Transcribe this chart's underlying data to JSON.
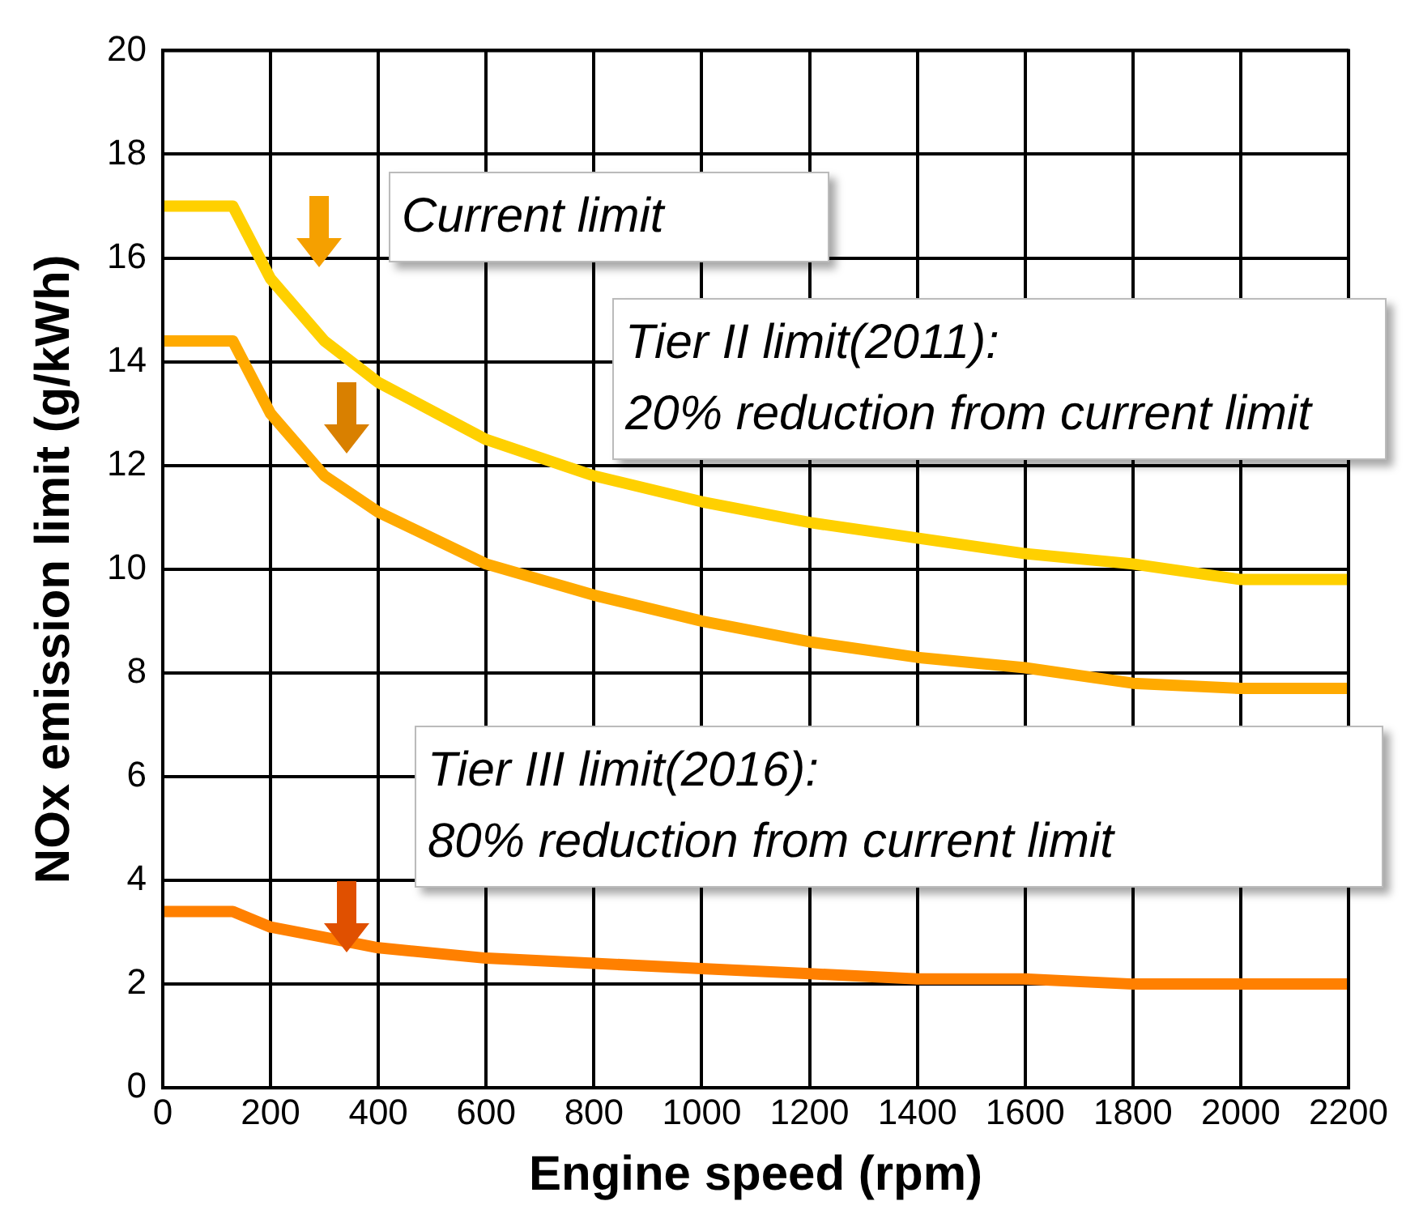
{
  "chart_data": {
    "type": "line",
    "xlabel": "Engine speed (rpm)",
    "ylabel": "NOx emission limit (g/kWh)",
    "x": [
      0,
      130,
      200,
      300,
      400,
      600,
      800,
      1000,
      1200,
      1400,
      1600,
      1800,
      2000,
      2200
    ],
    "series": [
      {
        "color": "#ffd000",
        "values": [
          17,
          17,
          15.6,
          14.4,
          13.6,
          12.5,
          11.8,
          11.3,
          10.9,
          10.6,
          10.3,
          10.1,
          9.8,
          9.8
        ]
      },
      {
        "color": "#ffaa00",
        "values": [
          14.4,
          14.4,
          13.0,
          11.8,
          11.1,
          10.1,
          9.5,
          9.0,
          8.6,
          8.3,
          8.1,
          7.8,
          7.7,
          7.7
        ]
      },
      {
        "color": "#ff8000",
        "values": [
          3.4,
          3.4,
          3.1,
          2.9,
          2.7,
          2.5,
          2.4,
          2.3,
          2.2,
          2.1,
          2.1,
          2.0,
          2.0,
          2.0
        ]
      }
    ],
    "xlim": [
      0,
      2200
    ],
    "ylim": [
      0,
      20
    ],
    "xticks": [
      0,
      200,
      400,
      600,
      800,
      1000,
      1200,
      1400,
      1600,
      1800,
      2000,
      2200
    ],
    "yticks": [
      0,
      2,
      4,
      6,
      8,
      10,
      12,
      14,
      16,
      18,
      20
    ],
    "grid": true,
    "marker": "none",
    "line_style": "solid",
    "annotations": [
      "Current limit",
      "Tier II limit(2011):\n20% reduction from current limit",
      "Tier III limit(2016):\n80% reduction from current limit"
    ]
  }
}
